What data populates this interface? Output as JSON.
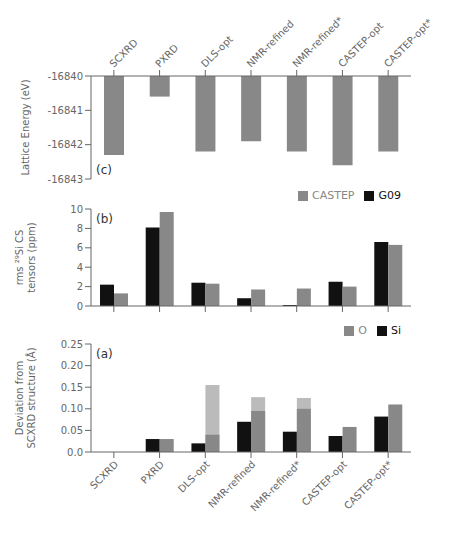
{
  "chart_data": [
    {
      "type": "bar",
      "categories": [
        "SCXRD",
        "PXRD",
        "DLS-opt",
        "NMR-refined",
        "NMR-refined*",
        "CASTEP-opt",
        "CASTEP-opt*"
      ],
      "values": [
        -16842.3,
        -16840.6,
        -16842.2,
        -16841.9,
        -16842.2,
        -16842.6,
        -16842.2
      ],
      "color": "#888888",
      "ylabel": "Lattice Energy (eV)",
      "ylim": [
        -16843,
        -16840
      ],
      "yticks": [
        -16843,
        -16842,
        -16841,
        -16840
      ],
      "annotations": [
        "(c)"
      ]
    },
    {
      "type": "bar",
      "categories": [
        null,
        null,
        null,
        null,
        null,
        null,
        null
      ],
      "series": [
        {
          "name": "G09",
          "color": "#111111",
          "values": [
            2.2,
            8.1,
            2.4,
            0.8,
            0.1,
            2.5,
            6.6
          ]
        },
        {
          "name": "CASTEP",
          "color": "#888888",
          "values": [
            1.3,
            9.7,
            2.3,
            1.7,
            1.8,
            2.0,
            6.3
          ]
        }
      ],
      "ylabel": "rms ²⁹Si CS\ntensors (ppm)",
      "ylim": [
        0,
        10
      ],
      "yticks": [
        0,
        2,
        4,
        6,
        8,
        10
      ],
      "legend": "upper right",
      "annotations": [
        "(b)"
      ]
    },
    {
      "type": "bar",
      "categories": [
        "SCXRD",
        "PXRD",
        "DLS-opt",
        "NMR-refined",
        "NMR-refined*",
        "CASTEP-opt",
        "CASTEP-opt*"
      ],
      "series": [
        {
          "name": "Si",
          "color": "#111111",
          "values": [
            0.0,
            0.03,
            0.02,
            0.07,
            0.047,
            0.037,
            0.082
          ]
        },
        {
          "name": "O",
          "color": "#888888",
          "values": [
            0.0,
            0.03,
            0.04,
            0.095,
            0.1,
            0.058,
            0.11
          ]
        },
        {
          "color": "#bbbbbb",
          "values": [
            0.0,
            0.0,
            0.155,
            0.127,
            0.125,
            0.0,
            0.0
          ]
        }
      ],
      "ylabel": "Deviation from\nSCXRD structure (Å)",
      "ylim": [
        0,
        0.25
      ],
      "yticks": [
        {
          "value": 0.0,
          "label": "0.0"
        },
        0.05,
        {
          "value": 0.1,
          "label": "0.10"
        },
        0.15,
        {
          "value": 0.2,
          "label": "0.20"
        },
        0.25
      ],
      "legend": "upper right",
      "annotations": [
        "(a)"
      ]
    }
  ]
}
